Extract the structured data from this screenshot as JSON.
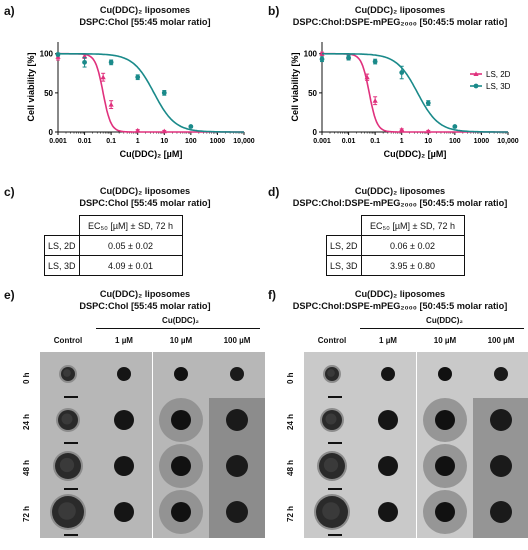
{
  "panels": {
    "a": {
      "label": "a)",
      "title_top": "Cu(DDC)₂ liposomes",
      "title_bottom": "DSPC:Chol [55:45 molar ratio]"
    },
    "b": {
      "label": "b)",
      "title_top": "Cu(DDC)₂ liposomes",
      "title_bottom": "DSPC:Chol:DSPE-mPEG₂₀₀₀ [50:45:5 molar ratio]"
    },
    "c": {
      "label": "c)",
      "title_top": "Cu(DDC)₂ liposomes",
      "title_bottom": "DSPC:Chol [55:45 molar ratio]",
      "header": "EC₅₀ [µM] ± SD, 72 h",
      "rows": [
        {
          "name": "LS, 2D",
          "value": "0.05 ± 0.02"
        },
        {
          "name": "LS, 3D",
          "value": "4.09 ± 0.01"
        }
      ]
    },
    "d": {
      "label": "d)",
      "title_top": "Cu(DDC)₂ liposomes",
      "title_bottom": "DSPC:Chol:DSPE-mPEG₂₀₀₀ [50:45:5 molar ratio]",
      "header": "EC₅₀ [µM] ± SD, 72 h",
      "rows": [
        {
          "name": "LS, 2D",
          "value": "0.06 ± 0.02"
        },
        {
          "name": "LS, 3D",
          "value": "3.95 ± 0.80"
        }
      ]
    },
    "e": {
      "label": "e)",
      "title_top": "Cu(DDC)₂ liposomes",
      "title_bottom": "DSPC:Chol [55:45 molar ratio]",
      "group_label": "Cu(DDC)₂",
      "columns": [
        "Control",
        "1 µM",
        "10 µM",
        "100 µM"
      ],
      "rows": [
        "0 h",
        "24 h",
        "48 h",
        "72 h"
      ]
    },
    "f": {
      "label": "f)",
      "title_top": "Cu(DDC)₂ liposomes",
      "title_bottom": "DSPC:Chol:DSPE-mPEG₂₀₀₀ [50:45:5 molar ratio]",
      "group_label": "Cu(DDC)₂",
      "columns": [
        "Control",
        "1 µM",
        "10 µM",
        "100 µM"
      ],
      "rows": [
        "0 h",
        "24 h",
        "48 h",
        "72 h"
      ]
    }
  },
  "colors": {
    "ls2d": "#e0317d",
    "ls3d": "#1a8a8a"
  },
  "chart_data": [
    {
      "type": "line",
      "panel": "a",
      "xlabel": "Cu(DDC)₂ [µM]",
      "ylabel": "Cell viability [%]",
      "xscale": "log",
      "xlim": [
        0.001,
        10000
      ],
      "ylim": [
        0,
        115
      ],
      "x_ticks": [
        "0.001",
        "0.01",
        "0.1",
        "1",
        "10",
        "100",
        "1000",
        "10,000"
      ],
      "y_ticks": [
        "0",
        "50",
        "100"
      ],
      "series": [
        {
          "name": "LS, 2D",
          "ec50": 0.05,
          "points": [
            {
              "x": 0.001,
              "y": 96,
              "err": 4
            },
            {
              "x": 0.01,
              "y": 97,
              "err": 3
            },
            {
              "x": 0.05,
              "y": 70,
              "err": 5
            },
            {
              "x": 0.1,
              "y": 35,
              "err": 5
            },
            {
              "x": 1,
              "y": 2,
              "err": 1
            },
            {
              "x": 10,
              "y": 1,
              "err": 1
            }
          ]
        },
        {
          "name": "LS, 3D",
          "ec50": 4.09,
          "points": [
            {
              "x": 0.001,
              "y": 99,
              "err": 2
            },
            {
              "x": 0.01,
              "y": 89,
              "err": 6
            },
            {
              "x": 0.1,
              "y": 89,
              "err": 3
            },
            {
              "x": 1,
              "y": 70,
              "err": 3
            },
            {
              "x": 10,
              "y": 50,
              "err": 3
            },
            {
              "x": 100,
              "y": 7,
              "err": 1
            }
          ]
        }
      ]
    },
    {
      "type": "line",
      "panel": "b",
      "xlabel": "Cu(DDC)₂ [µM]",
      "ylabel": "Cell viability [%]",
      "xscale": "log",
      "xlim": [
        0.001,
        10000
      ],
      "ylim": [
        0,
        115
      ],
      "x_ticks": [
        "0.001",
        "0.01",
        "0.1",
        "1",
        "10",
        "100",
        "1000",
        "10,000"
      ],
      "y_ticks": [
        "0",
        "50",
        "100"
      ],
      "legend": "right",
      "series": [
        {
          "name": "LS, 2D",
          "ec50": 0.06,
          "points": [
            {
              "x": 0.001,
              "y": 100,
              "err": 2
            },
            {
              "x": 0.01,
              "y": 96,
              "err": 3
            },
            {
              "x": 0.05,
              "y": 70,
              "err": 4
            },
            {
              "x": 0.1,
              "y": 40,
              "err": 5
            },
            {
              "x": 1,
              "y": 3,
              "err": 1
            },
            {
              "x": 10,
              "y": 1,
              "err": 1
            }
          ]
        },
        {
          "name": "LS, 3D",
          "ec50": 3.95,
          "points": [
            {
              "x": 0.001,
              "y": 93,
              "err": 3
            },
            {
              "x": 0.01,
              "y": 95,
              "err": 3
            },
            {
              "x": 0.1,
              "y": 90,
              "err": 3
            },
            {
              "x": 1,
              "y": 76,
              "err": 8
            },
            {
              "x": 10,
              "y": 37,
              "err": 3
            },
            {
              "x": 100,
              "y": 7,
              "err": 1
            }
          ]
        }
      ]
    }
  ]
}
